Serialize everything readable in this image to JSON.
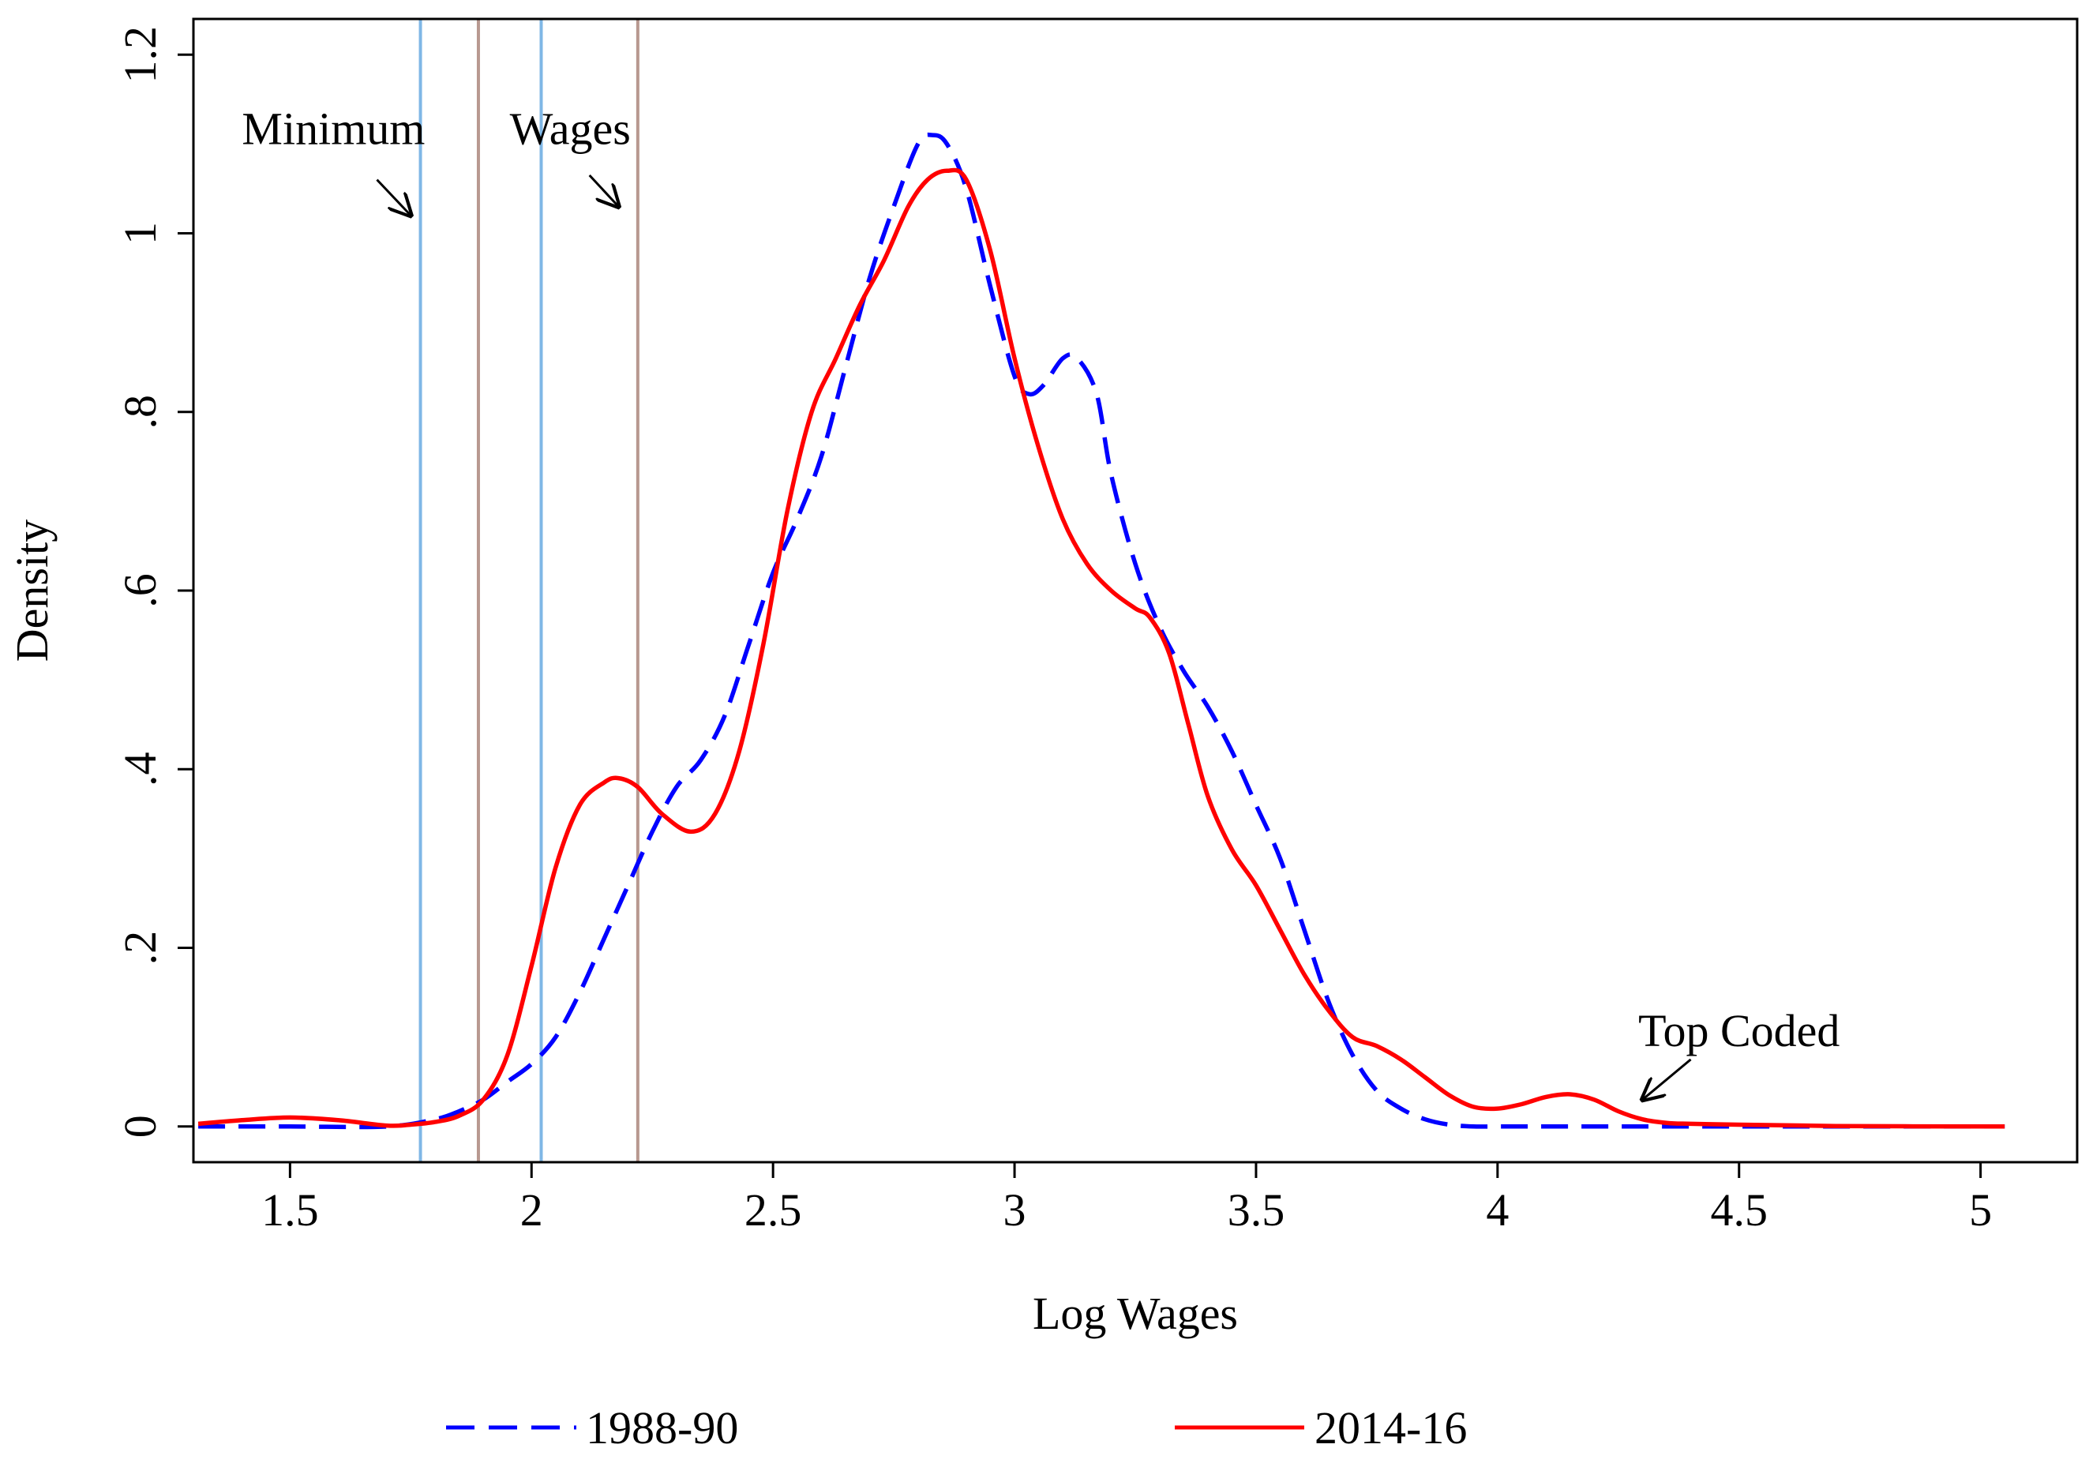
{
  "chart_data": {
    "type": "line",
    "title": "",
    "xlabel": "Log Wages",
    "ylabel": "Density",
    "xlim": [
      1.3,
      5.2
    ],
    "ylim": [
      -0.04,
      1.24
    ],
    "x_ticks": [
      1.5,
      2,
      2.5,
      3,
      3.5,
      4,
      4.5,
      5
    ],
    "x_tick_labels": [
      "1.5",
      "2",
      "2.5",
      "3",
      "3.5",
      "4",
      "4.5",
      "5"
    ],
    "y_ticks": [
      0,
      0.2,
      0.4,
      0.6,
      0.8,
      1.0,
      1.2
    ],
    "y_tick_labels": [
      "0",
      ".2",
      ".4",
      ".6",
      ".8",
      "1",
      "1.2"
    ],
    "vlines": [
      {
        "x": 1.77,
        "color": "#7fb7e6",
        "name": "min-wage-line-1988-90-low"
      },
      {
        "x": 1.89,
        "color": "#b89890",
        "name": "min-wage-line-2014-16-low"
      },
      {
        "x": 2.02,
        "color": "#7fb7e6",
        "name": "min-wage-line-1988-90-high"
      },
      {
        "x": 2.22,
        "color": "#b89890",
        "name": "min-wage-line-2014-16-high"
      }
    ],
    "annotations": [
      {
        "text": "Minimum",
        "x": 1.6,
        "y": 1.1,
        "arrow_to": [
          1.75,
          1.02
        ]
      },
      {
        "text": "Wages",
        "x": 2.1,
        "y": 1.1,
        "arrow_to": [
          2.18,
          1.03
        ]
      },
      {
        "text": "Top Coded",
        "x": 4.5,
        "y": 0.09,
        "arrow_to": [
          4.3,
          0.03
        ]
      }
    ],
    "series": [
      {
        "name": "1988-90",
        "color": "#0000ff",
        "style": "dashed",
        "x": [
          1.31,
          1.5,
          1.7,
          1.8,
          1.85,
          1.9,
          1.95,
          2.0,
          2.05,
          2.1,
          2.15,
          2.2,
          2.25,
          2.3,
          2.35,
          2.4,
          2.45,
          2.5,
          2.55,
          2.6,
          2.65,
          2.7,
          2.75,
          2.8,
          2.83,
          2.86,
          2.9,
          2.95,
          3.0,
          3.03,
          3.06,
          3.1,
          3.13,
          3.17,
          3.2,
          3.25,
          3.3,
          3.35,
          3.4,
          3.45,
          3.5,
          3.55,
          3.6,
          3.65,
          3.7,
          3.75,
          3.8,
          3.85,
          3.9,
          3.95,
          4.0,
          4.2,
          4.5,
          5.05
        ],
        "values": [
          0.0,
          0.0,
          0.0,
          0.008,
          0.017,
          0.03,
          0.05,
          0.07,
          0.1,
          0.15,
          0.21,
          0.27,
          0.33,
          0.38,
          0.41,
          0.46,
          0.54,
          0.62,
          0.68,
          0.75,
          0.85,
          0.95,
          1.03,
          1.1,
          1.11,
          1.1,
          1.05,
          0.94,
          0.84,
          0.82,
          0.83,
          0.86,
          0.86,
          0.82,
          0.73,
          0.63,
          0.56,
          0.51,
          0.47,
          0.42,
          0.36,
          0.3,
          0.22,
          0.14,
          0.08,
          0.04,
          0.02,
          0.008,
          0.002,
          0.0,
          0.0,
          0.0,
          0.0,
          0.0
        ]
      },
      {
        "name": "2014-16",
        "color": "#ff0000",
        "style": "solid",
        "x": [
          1.31,
          1.4,
          1.5,
          1.6,
          1.7,
          1.75,
          1.8,
          1.85,
          1.9,
          1.95,
          2.0,
          2.05,
          2.1,
          2.15,
          2.18,
          2.22,
          2.27,
          2.33,
          2.38,
          2.43,
          2.48,
          2.53,
          2.58,
          2.63,
          2.68,
          2.73,
          2.78,
          2.82,
          2.86,
          2.9,
          2.95,
          3.0,
          3.05,
          3.1,
          3.15,
          3.2,
          3.25,
          3.28,
          3.32,
          3.36,
          3.4,
          3.45,
          3.5,
          3.55,
          3.6,
          3.65,
          3.7,
          3.75,
          3.8,
          3.85,
          3.9,
          3.95,
          4.0,
          4.05,
          4.1,
          4.15,
          4.2,
          4.25,
          4.3,
          4.35,
          4.4,
          4.5,
          4.7,
          5.05
        ],
        "values": [
          0.003,
          0.007,
          0.01,
          0.007,
          0.001,
          0.002,
          0.005,
          0.012,
          0.03,
          0.08,
          0.18,
          0.29,
          0.36,
          0.385,
          0.39,
          0.38,
          0.35,
          0.33,
          0.35,
          0.42,
          0.54,
          0.69,
          0.8,
          0.86,
          0.92,
          0.97,
          1.03,
          1.06,
          1.07,
          1.06,
          0.98,
          0.86,
          0.76,
          0.68,
          0.63,
          0.6,
          0.58,
          0.57,
          0.53,
          0.45,
          0.37,
          0.31,
          0.27,
          0.22,
          0.17,
          0.13,
          0.1,
          0.09,
          0.075,
          0.055,
          0.035,
          0.022,
          0.02,
          0.025,
          0.033,
          0.036,
          0.03,
          0.017,
          0.008,
          0.004,
          0.003,
          0.002,
          0.0005,
          0.0
        ]
      }
    ]
  },
  "legend": {
    "items": [
      {
        "label": "1988-90"
      },
      {
        "label": "2014-16"
      }
    ]
  }
}
